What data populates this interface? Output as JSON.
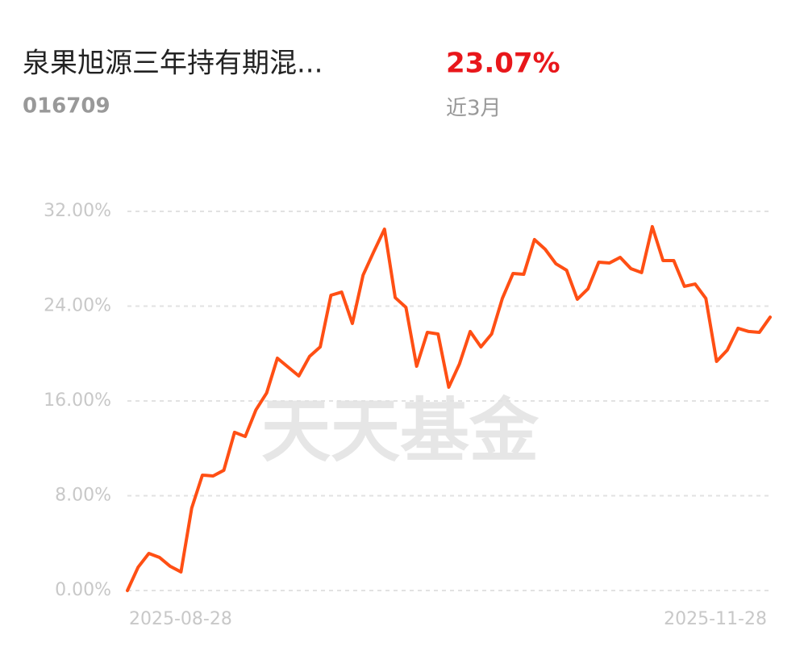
{
  "header": {
    "fund_name": "泉果旭源三年持有期混...",
    "fund_code": "016709",
    "return": {
      "value": 23.07,
      "label": "23.07%"
    },
    "period": "近3月"
  },
  "chart_data": {
    "type": "line",
    "watermark": "天天基金",
    "categories": [
      "2025-08-28",
      null,
      null,
      null,
      null,
      null,
      null,
      null,
      null,
      null,
      null,
      null,
      null,
      null,
      null,
      null,
      null,
      null,
      null,
      null,
      null,
      null,
      null,
      null,
      null,
      null,
      null,
      null,
      null,
      null,
      null,
      null,
      null,
      null,
      null,
      null,
      null,
      null,
      null,
      null,
      null,
      null,
      null,
      null,
      null,
      null,
      null,
      null,
      null,
      null,
      null,
      null,
      null,
      null,
      null,
      null,
      null,
      null,
      null,
      null,
      "2025-11-28"
    ],
    "series": [
      {
        "color": "#ff4f14",
        "values": [
          0,
          1.97,
          3.13,
          2.79,
          2.04,
          1.57,
          6.95,
          9.74,
          9.67,
          10.15,
          13.35,
          13.0,
          15.25,
          16.68,
          19.61,
          18.86,
          18.11,
          19.75,
          20.56,
          24.92,
          25.19,
          22.54,
          26.62,
          28.6,
          30.5,
          24.72,
          23.9,
          18.93,
          21.79,
          21.65,
          17.16,
          19.13,
          21.86,
          20.56,
          21.65,
          24.65,
          26.76,
          26.69,
          29.62,
          28.8,
          27.58,
          27.03,
          24.58,
          25.47,
          27.71,
          27.64,
          28.12,
          27.17,
          26.83,
          30.71,
          27.85,
          27.85,
          25.67,
          25.87,
          24.65,
          19.34,
          20.29,
          22.13,
          21.86,
          21.79,
          23.07
        ]
      }
    ],
    "ylim": [
      0,
      32
    ],
    "yticks": [
      {
        "value": 0,
        "label": "0.00%"
      },
      {
        "value": 8,
        "label": "8.00%"
      },
      {
        "value": 16,
        "label": "16.00%"
      },
      {
        "value": 24,
        "label": "24.00%"
      },
      {
        "value": 32,
        "label": "32.00%"
      }
    ],
    "grid": true
  }
}
